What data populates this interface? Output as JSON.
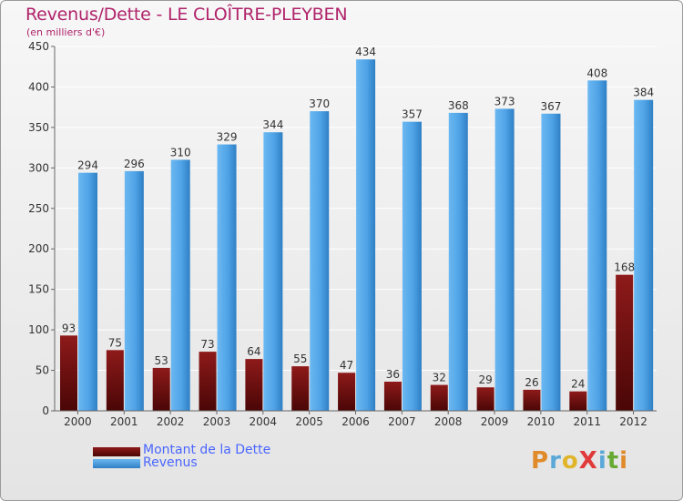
{
  "title": "Revenus/Dette - LE CLOÎTRE-PLEYBEN",
  "subtitle": "(en milliers d'€)",
  "legend": {
    "debt_label": "Montant de la Dette",
    "revenue_label": "Revenus"
  },
  "logo": {
    "text": "ProXiti"
  },
  "colors": {
    "title": "#b0236a",
    "debt": "#7a1212",
    "revenue": "#4fa3e6",
    "legend_text": "#4a66ff"
  },
  "chart_data": {
    "type": "bar",
    "categories": [
      "2000",
      "2001",
      "2002",
      "2003",
      "2004",
      "2005",
      "2006",
      "2007",
      "2008",
      "2009",
      "2010",
      "2011",
      "2012"
    ],
    "series": [
      {
        "name": "Montant de la Dette",
        "values": [
          93,
          75,
          53,
          73,
          64,
          55,
          47,
          36,
          32,
          29,
          26,
          24,
          168
        ]
      },
      {
        "name": "Revenus",
        "values": [
          294,
          296,
          310,
          329,
          344,
          370,
          434,
          357,
          368,
          373,
          367,
          408,
          384
        ]
      }
    ],
    "yticks": [
      0,
      50,
      100,
      150,
      200,
      250,
      300,
      350,
      400,
      450
    ],
    "ylim": [
      0,
      450
    ],
    "grid": true,
    "legend_position": "bottom-left"
  }
}
